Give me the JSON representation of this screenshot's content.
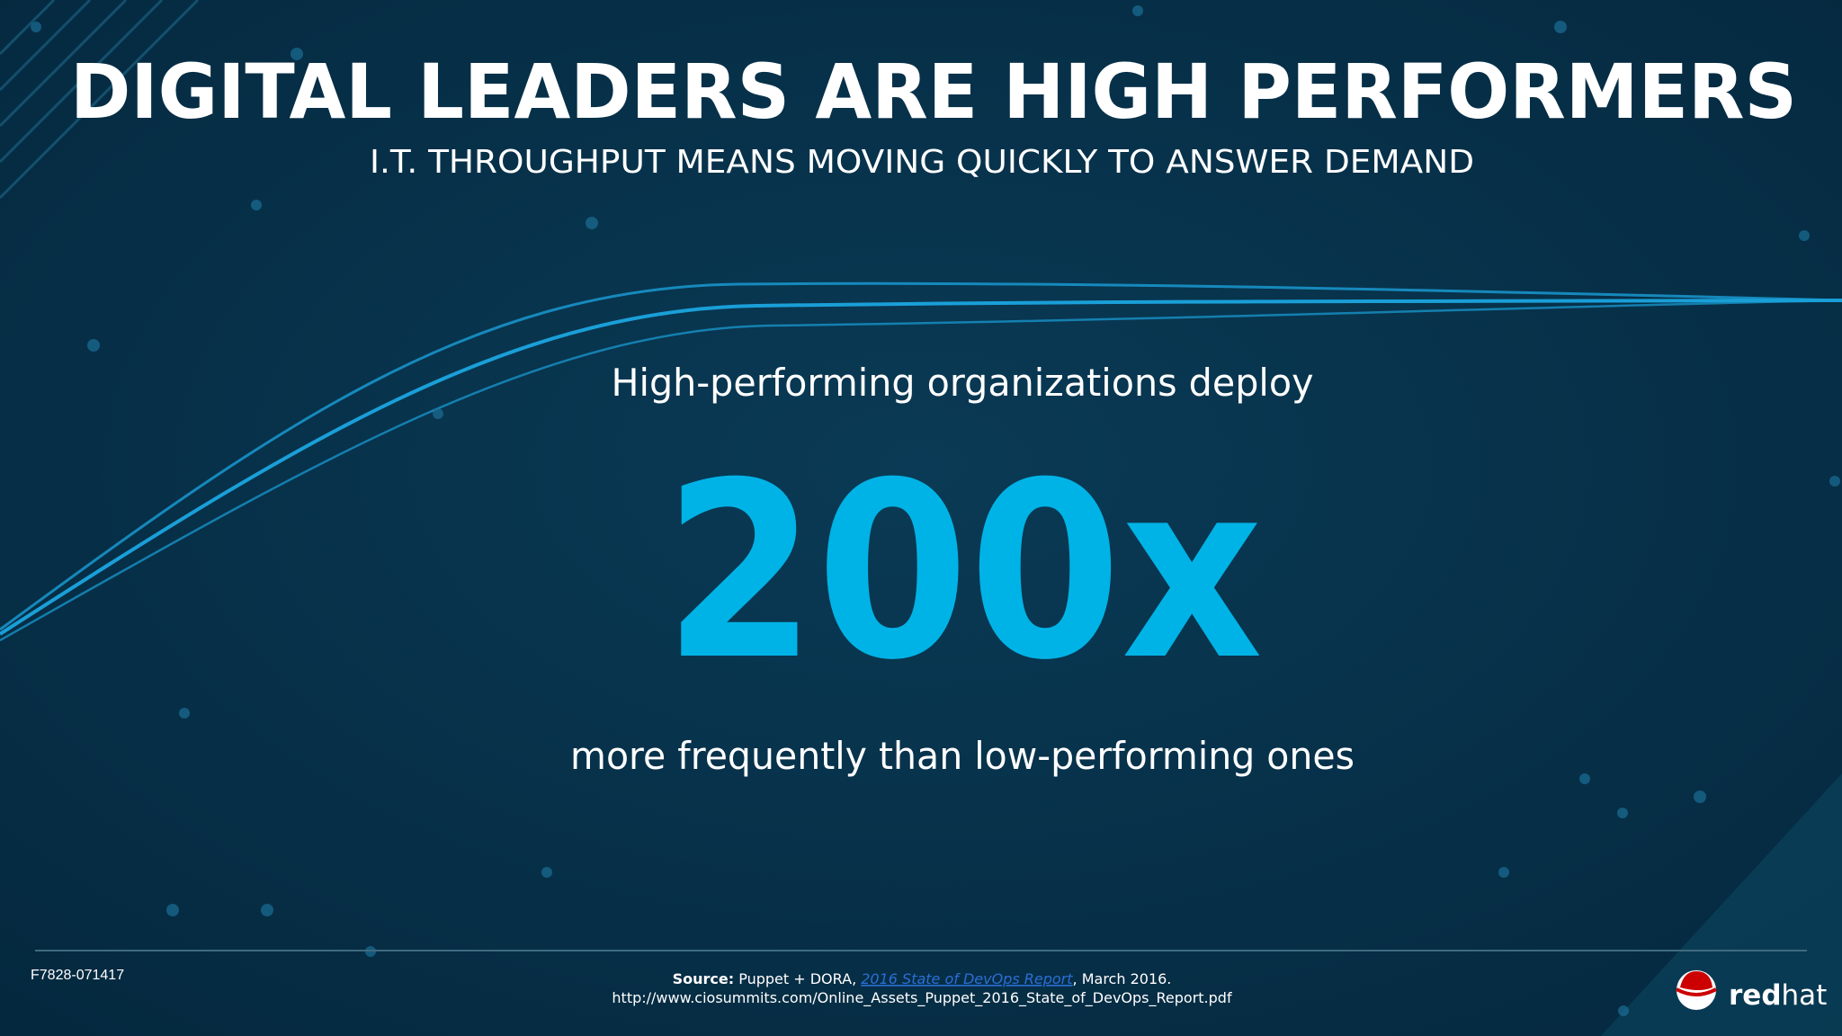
{
  "header": {
    "title": "DIGITAL LEADERS ARE HIGH PERFORMERS",
    "subtitle": "I.T. THROUGHPUT MEANS MOVING QUICKLY TO ANSWER DEMAND"
  },
  "statement": {
    "lead": "High-performing organizations deploy",
    "figure": "200x",
    "tail": "more frequently than low-performing ones"
  },
  "footer": {
    "code": "F7828-071417",
    "source_label": "Source:",
    "source_text": "Puppet + DORA, ",
    "source_link": "2016 State of DevOps Report",
    "source_date": ", March 2016.",
    "url": "http://www.ciosummits.com/Online_Assets_Puppet_2016_State_of_DevOps_Report.pdf",
    "logo_bold": "red",
    "logo_light": "hat"
  }
}
